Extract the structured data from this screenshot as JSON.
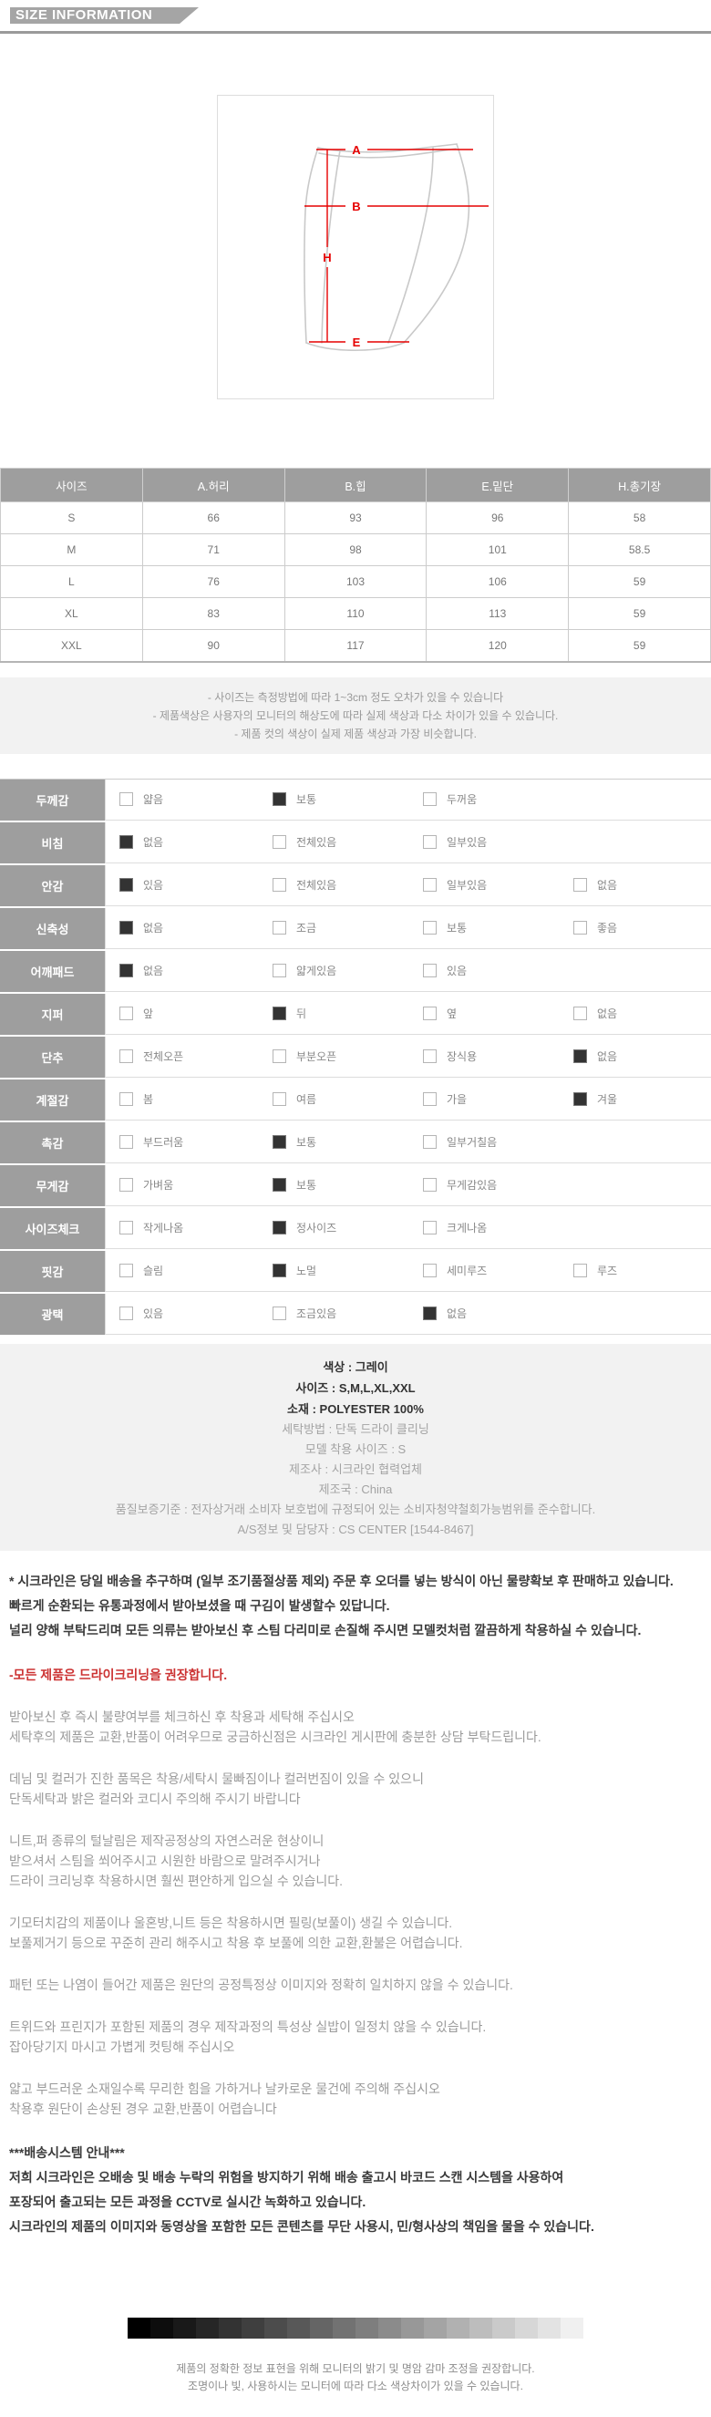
{
  "header": {
    "title": "SIZE INFORMATION"
  },
  "diagram": {
    "label_waist": "A",
    "label_hip": "B",
    "label_length": "H",
    "label_hem": "E"
  },
  "size_table": {
    "columns": [
      "사이즈",
      "A.허리",
      "B.힙",
      "E.밑단",
      "H.총기장"
    ],
    "rows": [
      {
        "size": "S",
        "values": [
          "66",
          "93",
          "96",
          "58"
        ]
      },
      {
        "size": "M",
        "values": [
          "71",
          "98",
          "101",
          "58.5"
        ]
      },
      {
        "size": "L",
        "values": [
          "76",
          "103",
          "106",
          "59"
        ]
      },
      {
        "size": "XL",
        "values": [
          "83",
          "110",
          "113",
          "59"
        ]
      },
      {
        "size": "XXL",
        "values": [
          "90",
          "117",
          "120",
          "59"
        ]
      }
    ]
  },
  "notes": [
    "- 사이즈는 측정방법에 따라 1~3cm 정도 오차가 있을 수 있습니다",
    "- 제품색상은 사용자의 모니터의 해상도에 따라 실제 색상과 다소 차이가 있을 수 있습니다.",
    "- 제품 컷의 색상이 실제 제품 색상과 가장 비슷합니다."
  ],
  "spec_table": {
    "rows": [
      {
        "label": "두께감",
        "options": [
          {
            "label": "얇음",
            "checked": false
          },
          {
            "label": "보통",
            "checked": true
          },
          {
            "label": "두꺼움",
            "checked": false
          }
        ]
      },
      {
        "label": "비침",
        "options": [
          {
            "label": "없음",
            "checked": true
          },
          {
            "label": "전체있음",
            "checked": false
          },
          {
            "label": "일부있음",
            "checked": false
          }
        ]
      },
      {
        "label": "안감",
        "options": [
          {
            "label": "있음",
            "checked": true
          },
          {
            "label": "전체있음",
            "checked": false
          },
          {
            "label": "일부있음",
            "checked": false
          },
          {
            "label": "없음",
            "checked": false
          }
        ]
      },
      {
        "label": "신축성",
        "options": [
          {
            "label": "없음",
            "checked": true
          },
          {
            "label": "조금",
            "checked": false
          },
          {
            "label": "보통",
            "checked": false
          },
          {
            "label": "좋음",
            "checked": false
          }
        ]
      },
      {
        "label": "어깨패드",
        "options": [
          {
            "label": "없음",
            "checked": true
          },
          {
            "label": "얇게있음",
            "checked": false
          },
          {
            "label": "있음",
            "checked": false
          }
        ]
      },
      {
        "label": "지퍼",
        "options": [
          {
            "label": "앞",
            "checked": false
          },
          {
            "label": "뒤",
            "checked": true
          },
          {
            "label": "옆",
            "checked": false
          },
          {
            "label": "없음",
            "checked": false
          }
        ]
      },
      {
        "label": "단추",
        "options": [
          {
            "label": "전체오픈",
            "checked": false
          },
          {
            "label": "부분오픈",
            "checked": false
          },
          {
            "label": "장식용",
            "checked": false
          },
          {
            "label": "없음",
            "checked": true
          }
        ]
      },
      {
        "label": "계절감",
        "options": [
          {
            "label": "봄",
            "checked": false
          },
          {
            "label": "여름",
            "checked": false
          },
          {
            "label": "가을",
            "checked": false
          },
          {
            "label": "겨울",
            "checked": true
          }
        ]
      },
      {
        "label": "촉감",
        "options": [
          {
            "label": "부드러움",
            "checked": false
          },
          {
            "label": "보통",
            "checked": true
          },
          {
            "label": "일부거칠음",
            "checked": false
          }
        ]
      },
      {
        "label": "무게감",
        "options": [
          {
            "label": "가벼움",
            "checked": false
          },
          {
            "label": "보통",
            "checked": true
          },
          {
            "label": "무게감있음",
            "checked": false
          }
        ]
      },
      {
        "label": "사이즈체크",
        "options": [
          {
            "label": "작게나옴",
            "checked": false
          },
          {
            "label": "정사이즈",
            "checked": true
          },
          {
            "label": "크게나옴",
            "checked": false
          }
        ]
      },
      {
        "label": "핏감",
        "options": [
          {
            "label": "슬림",
            "checked": false
          },
          {
            "label": "노멀",
            "checked": true
          },
          {
            "label": "세미루즈",
            "checked": false
          },
          {
            "label": "루즈",
            "checked": false
          }
        ]
      },
      {
        "label": "광택",
        "options": [
          {
            "label": "있음",
            "checked": false
          },
          {
            "label": "조금있음",
            "checked": false
          },
          {
            "label": "없음",
            "checked": true
          }
        ]
      }
    ]
  },
  "product_info": {
    "bold_lines": [
      "색상 : 그레이",
      "사이즈 : S,M,L,XL,XXL",
      "소재 : POLYESTER 100%"
    ],
    "gray_lines": [
      "세탁방법 : 단독 드라이 클리닝",
      "모델 착용 사이즈 : S",
      "제조사 : 시크라인 협력업체",
      "제조국 : China",
      "품질보증기준 : 전자상거래 소비자 보호법에 규정되어 있는 소비자청약철회가능범위를 준수합니다.",
      "A/S정보 및 담당자 : CS CENTER [1544-8467]"
    ]
  },
  "paragraphs": [
    {
      "style": "dark",
      "lines": [
        "* 시크라인은 당일 배송을 추구하며 (일부 조기품절상품 제외) 주문 후 오더를 넣는 방식이 아닌 물량확보 후 판매하고 있습니다.",
        "빠르게 순환되는 유통과정에서 받아보셨을 때 구김이 발생할수 있답니다.",
        "널리 양해 부탁드리며 모든 의류는 받아보신 후 스팀 다리미로 손질해 주시면 모델컷처럼 깔끔하게 착용하실 수 있습니다."
      ]
    },
    {
      "style": "red",
      "lines": [
        "-모든 제품은 드라이크리닝을 권장합니다."
      ]
    },
    {
      "style": "gray",
      "lines": [
        "받아보신 후 즉시 불량여부를 체크하신 후 착용과 세탁해 주십시오",
        "세탁후의 제품은 교환,반품이 어려우므로 궁금하신점은 시크라인 게시판에 충분한 상담 부탁드립니다."
      ]
    },
    {
      "style": "gray",
      "lines": [
        "데님 및 컬러가 진한 품목은 착용/세탁시 물빠짐이나 컬러번짐이 있을 수 있으니",
        "단독세탁과 밝은 컬러와 코디시 주의해 주시기 바랍니다"
      ]
    },
    {
      "style": "gray",
      "lines": [
        "니트,퍼 종류의 털날림은 제작공정상의 자연스러운 현상이니",
        "받으셔서 스팀을 쐬어주시고 시원한 바람으로 말려주시거나",
        "드라이 크리닝후 착용하시면 훨씬 편안하게 입으실 수 있습니다."
      ]
    },
    {
      "style": "gray",
      "lines": [
        "기모터치감의 제품이나 울혼방,니트 등은 착용하시면 필링(보풀이) 생길 수 있습니다.",
        "보풀제거기 등으로 꾸준히 관리 해주시고 착용 후 보풀에 의한 교환,환불은 어렵습니다."
      ]
    },
    {
      "style": "gray",
      "lines": [
        "패턴 또는 나염이 들어간 제품은 원단의 공정특정상 이미지와 정확히 일치하지 않을 수 있습니다."
      ]
    },
    {
      "style": "gray",
      "lines": [
        "트위드와 프린지가 포함된 제품의 경우 제작과정의 특성상 실밥이 일정치 않을 수 있습니다.",
        "잡아당기지 마시고 가볍게 컷팅해 주십시오"
      ]
    },
    {
      "style": "gray",
      "lines": [
        "얇고 부드러운 소재일수록 무리한 힘을 가하거나 날카로운 물건에 주의해 주십시오",
        "착용후 원단이 손상된 경우 교환,반품이 어렵습니다"
      ]
    },
    {
      "style": "dark",
      "lines": [
        "***배송시스템 안내***",
        "저희 시크라인은 오배송 및 배송 누락의 위험을 방지하기 위해 배송 출고시 바코드 스캔 시스템을 사용하여",
        "포장되어 출고되는 모든 과정을 CCTV로 실시간 녹화하고 있습니다.",
        "시크라인의 제품의 이미지와 동영상을 포함한 모든 콘텐츠를 무단 사용시, 민/형사상의 책임을 물을 수 있습니다."
      ]
    }
  ],
  "gradient": {
    "steps": 20
  },
  "footer_lines": [
    "제품의 정확한 정보 표현을 위해 모니터의 밝기 및 명암 감마 조정을 권장합니다.",
    "조명이나 빛, 사용하시는 모니터에 따라 다소 색상차이가 있을 수 있습니다."
  ],
  "colors": {
    "accent_red": "#e60000",
    "header_gray": "#a5a5a5",
    "table_header_gray": "#9e9e9e",
    "note_bg": "#f2f2f2"
  }
}
